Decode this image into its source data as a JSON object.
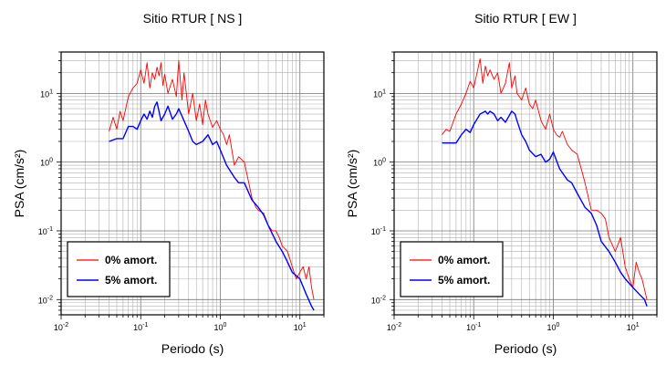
{
  "chart_data": [
    {
      "type": "line",
      "title": "Sitio RTUR [ NS ]",
      "xlabel": "Periodo (s)",
      "ylabel": "PSA (cm/s²)",
      "x_scale": "log",
      "y_scale": "log",
      "xlim": [
        0.01,
        20
      ],
      "ylim": [
        0.006,
        40
      ],
      "grid": true,
      "legend_position": "bottom-left",
      "x_ticks": [
        {
          "value": 0.01,
          "base": "10",
          "exp": "-2"
        },
        {
          "value": 0.1,
          "base": "10",
          "exp": "-1"
        },
        {
          "value": 1,
          "base": "10",
          "exp": "0"
        },
        {
          "value": 10,
          "base": "10",
          "exp": "1"
        }
      ],
      "y_ticks": [
        {
          "value": 0.01,
          "base": "10",
          "exp": "-2"
        },
        {
          "value": 0.1,
          "base": "10",
          "exp": "-1"
        },
        {
          "value": 1,
          "base": "10",
          "exp": "0"
        },
        {
          "value": 10,
          "base": "10",
          "exp": "1"
        }
      ],
      "series": [
        {
          "name": "0% amort.",
          "color": "#ff0000",
          "x": [
            0.04,
            0.045,
            0.05,
            0.055,
            0.06,
            0.07,
            0.08,
            0.09,
            0.1,
            0.11,
            0.12,
            0.13,
            0.14,
            0.15,
            0.16,
            0.17,
            0.18,
            0.19,
            0.2,
            0.22,
            0.25,
            0.28,
            0.3,
            0.33,
            0.35,
            0.4,
            0.45,
            0.5,
            0.55,
            0.6,
            0.65,
            0.7,
            0.8,
            0.9,
            1.0,
            1.1,
            1.2,
            1.3,
            1.5,
            1.7,
            2.0,
            2.2,
            2.5,
            2.8,
            3.0,
            3.5,
            4.0,
            4.5,
            5.0,
            5.5,
            6.0,
            7.0,
            8.0,
            9.0,
            10.0,
            11.0,
            12.0,
            13.0,
            14.0,
            15.0
          ],
          "y": [
            2.8,
            4.5,
            3.0,
            5.5,
            4.0,
            9.0,
            12,
            14,
            22,
            14,
            28,
            12,
            20,
            16,
            24,
            18,
            28,
            13,
            19,
            10,
            16,
            9,
            30,
            8,
            20,
            5,
            10,
            4,
            7,
            3.5,
            8,
            5,
            3.2,
            4,
            3.0,
            2.5,
            1.8,
            2.5,
            0.9,
            1.2,
            1.0,
            0.6,
            0.3,
            0.22,
            0.2,
            0.18,
            0.12,
            0.1,
            0.1,
            0.08,
            0.06,
            0.05,
            0.03,
            0.02,
            0.025,
            0.03,
            0.02,
            0.03,
            0.015,
            0.01
          ]
        },
        {
          "name": "5% amort.",
          "color": "#0000ff",
          "x": [
            0.04,
            0.05,
            0.06,
            0.07,
            0.08,
            0.09,
            0.1,
            0.11,
            0.12,
            0.13,
            0.14,
            0.15,
            0.16,
            0.18,
            0.2,
            0.22,
            0.25,
            0.28,
            0.3,
            0.35,
            0.4,
            0.45,
            0.5,
            0.6,
            0.7,
            0.8,
            0.9,
            1.0,
            1.2,
            1.5,
            1.7,
            2.0,
            2.5,
            3.0,
            3.5,
            4.0,
            5.0,
            6.0,
            7.0,
            8.0,
            10.0,
            12.0,
            14.0,
            15.0
          ],
          "y": [
            2.0,
            2.2,
            2.2,
            3.3,
            3.3,
            3.0,
            4.0,
            5.0,
            4.2,
            5.5,
            4.5,
            6.5,
            7.5,
            4.0,
            5.0,
            6.5,
            4.2,
            5.0,
            6.0,
            4.0,
            2.8,
            2.0,
            1.8,
            2.0,
            2.5,
            1.8,
            2.0,
            1.5,
            0.9,
            0.6,
            0.5,
            0.5,
            0.28,
            0.22,
            0.17,
            0.12,
            0.07,
            0.05,
            0.035,
            0.025,
            0.02,
            0.012,
            0.008,
            0.007
          ]
        }
      ]
    },
    {
      "type": "line",
      "title": "Sitio RTUR [ EW ]",
      "xlabel": "Periodo (s)",
      "ylabel": "PSA (cm/s²)",
      "x_scale": "log",
      "y_scale": "log",
      "xlim": [
        0.01,
        20
      ],
      "ylim": [
        0.006,
        40
      ],
      "grid": true,
      "legend_position": "bottom-left",
      "x_ticks": [
        {
          "value": 0.01,
          "base": "10",
          "exp": "-2"
        },
        {
          "value": 0.1,
          "base": "10",
          "exp": "-1"
        },
        {
          "value": 1,
          "base": "10",
          "exp": "0"
        },
        {
          "value": 10,
          "base": "10",
          "exp": "1"
        }
      ],
      "y_ticks": [
        {
          "value": 0.01,
          "base": "10",
          "exp": "-2"
        },
        {
          "value": 0.1,
          "base": "10",
          "exp": "-1"
        },
        {
          "value": 1,
          "base": "10",
          "exp": "0"
        },
        {
          "value": 10,
          "base": "10",
          "exp": "1"
        }
      ],
      "series": [
        {
          "name": "0% amort.",
          "color": "#ff0000",
          "x": [
            0.04,
            0.045,
            0.05,
            0.06,
            0.07,
            0.08,
            0.09,
            0.1,
            0.11,
            0.12,
            0.13,
            0.14,
            0.15,
            0.16,
            0.18,
            0.2,
            0.22,
            0.25,
            0.28,
            0.3,
            0.33,
            0.35,
            0.4,
            0.45,
            0.5,
            0.55,
            0.6,
            0.7,
            0.8,
            0.9,
            1.0,
            1.1,
            1.2,
            1.3,
            1.5,
            1.7,
            2.0,
            2.5,
            3.0,
            3.5,
            4.0,
            4.5,
            5.0,
            6.0,
            7.0,
            8.0,
            9.0,
            10.0,
            11.0,
            12.0,
            13.0,
            15.0
          ],
          "y": [
            2.5,
            3.0,
            2.8,
            5.0,
            7.0,
            10,
            15,
            12,
            20,
            32,
            14,
            25,
            18,
            22,
            16,
            20,
            10,
            14,
            28,
            12,
            18,
            10,
            8,
            12,
            7,
            6,
            8,
            4,
            3,
            5,
            3,
            2.5,
            2.3,
            2.8,
            1.8,
            1.5,
            1.3,
            0.5,
            0.2,
            0.2,
            0.18,
            0.15,
            0.08,
            0.05,
            0.08,
            0.03,
            0.02,
            0.015,
            0.035,
            0.025,
            0.02,
            0.01
          ]
        },
        {
          "name": "5% amort.",
          "color": "#0000ff",
          "x": [
            0.04,
            0.05,
            0.06,
            0.07,
            0.08,
            0.09,
            0.1,
            0.12,
            0.14,
            0.15,
            0.16,
            0.18,
            0.2,
            0.22,
            0.25,
            0.3,
            0.33,
            0.35,
            0.4,
            0.45,
            0.5,
            0.6,
            0.7,
            0.8,
            0.9,
            1.0,
            1.2,
            1.5,
            1.7,
            2.0,
            2.5,
            3.0,
            3.5,
            4.0,
            5.0,
            6.0,
            7.0,
            8.0,
            10.0,
            12.0,
            14.0,
            15.0
          ],
          "y": [
            1.9,
            1.9,
            1.9,
            2.5,
            3.0,
            2.7,
            3.5,
            5.0,
            5.5,
            5.0,
            5.5,
            5.0,
            4.0,
            4.5,
            3.8,
            5.5,
            5.0,
            4.0,
            2.5,
            2.0,
            1.5,
            1.2,
            1.3,
            1.0,
            1.1,
            1.4,
            0.8,
            0.55,
            0.5,
            0.35,
            0.22,
            0.18,
            0.12,
            0.07,
            0.05,
            0.035,
            0.025,
            0.02,
            0.015,
            0.012,
            0.01,
            0.008
          ]
        }
      ]
    }
  ]
}
